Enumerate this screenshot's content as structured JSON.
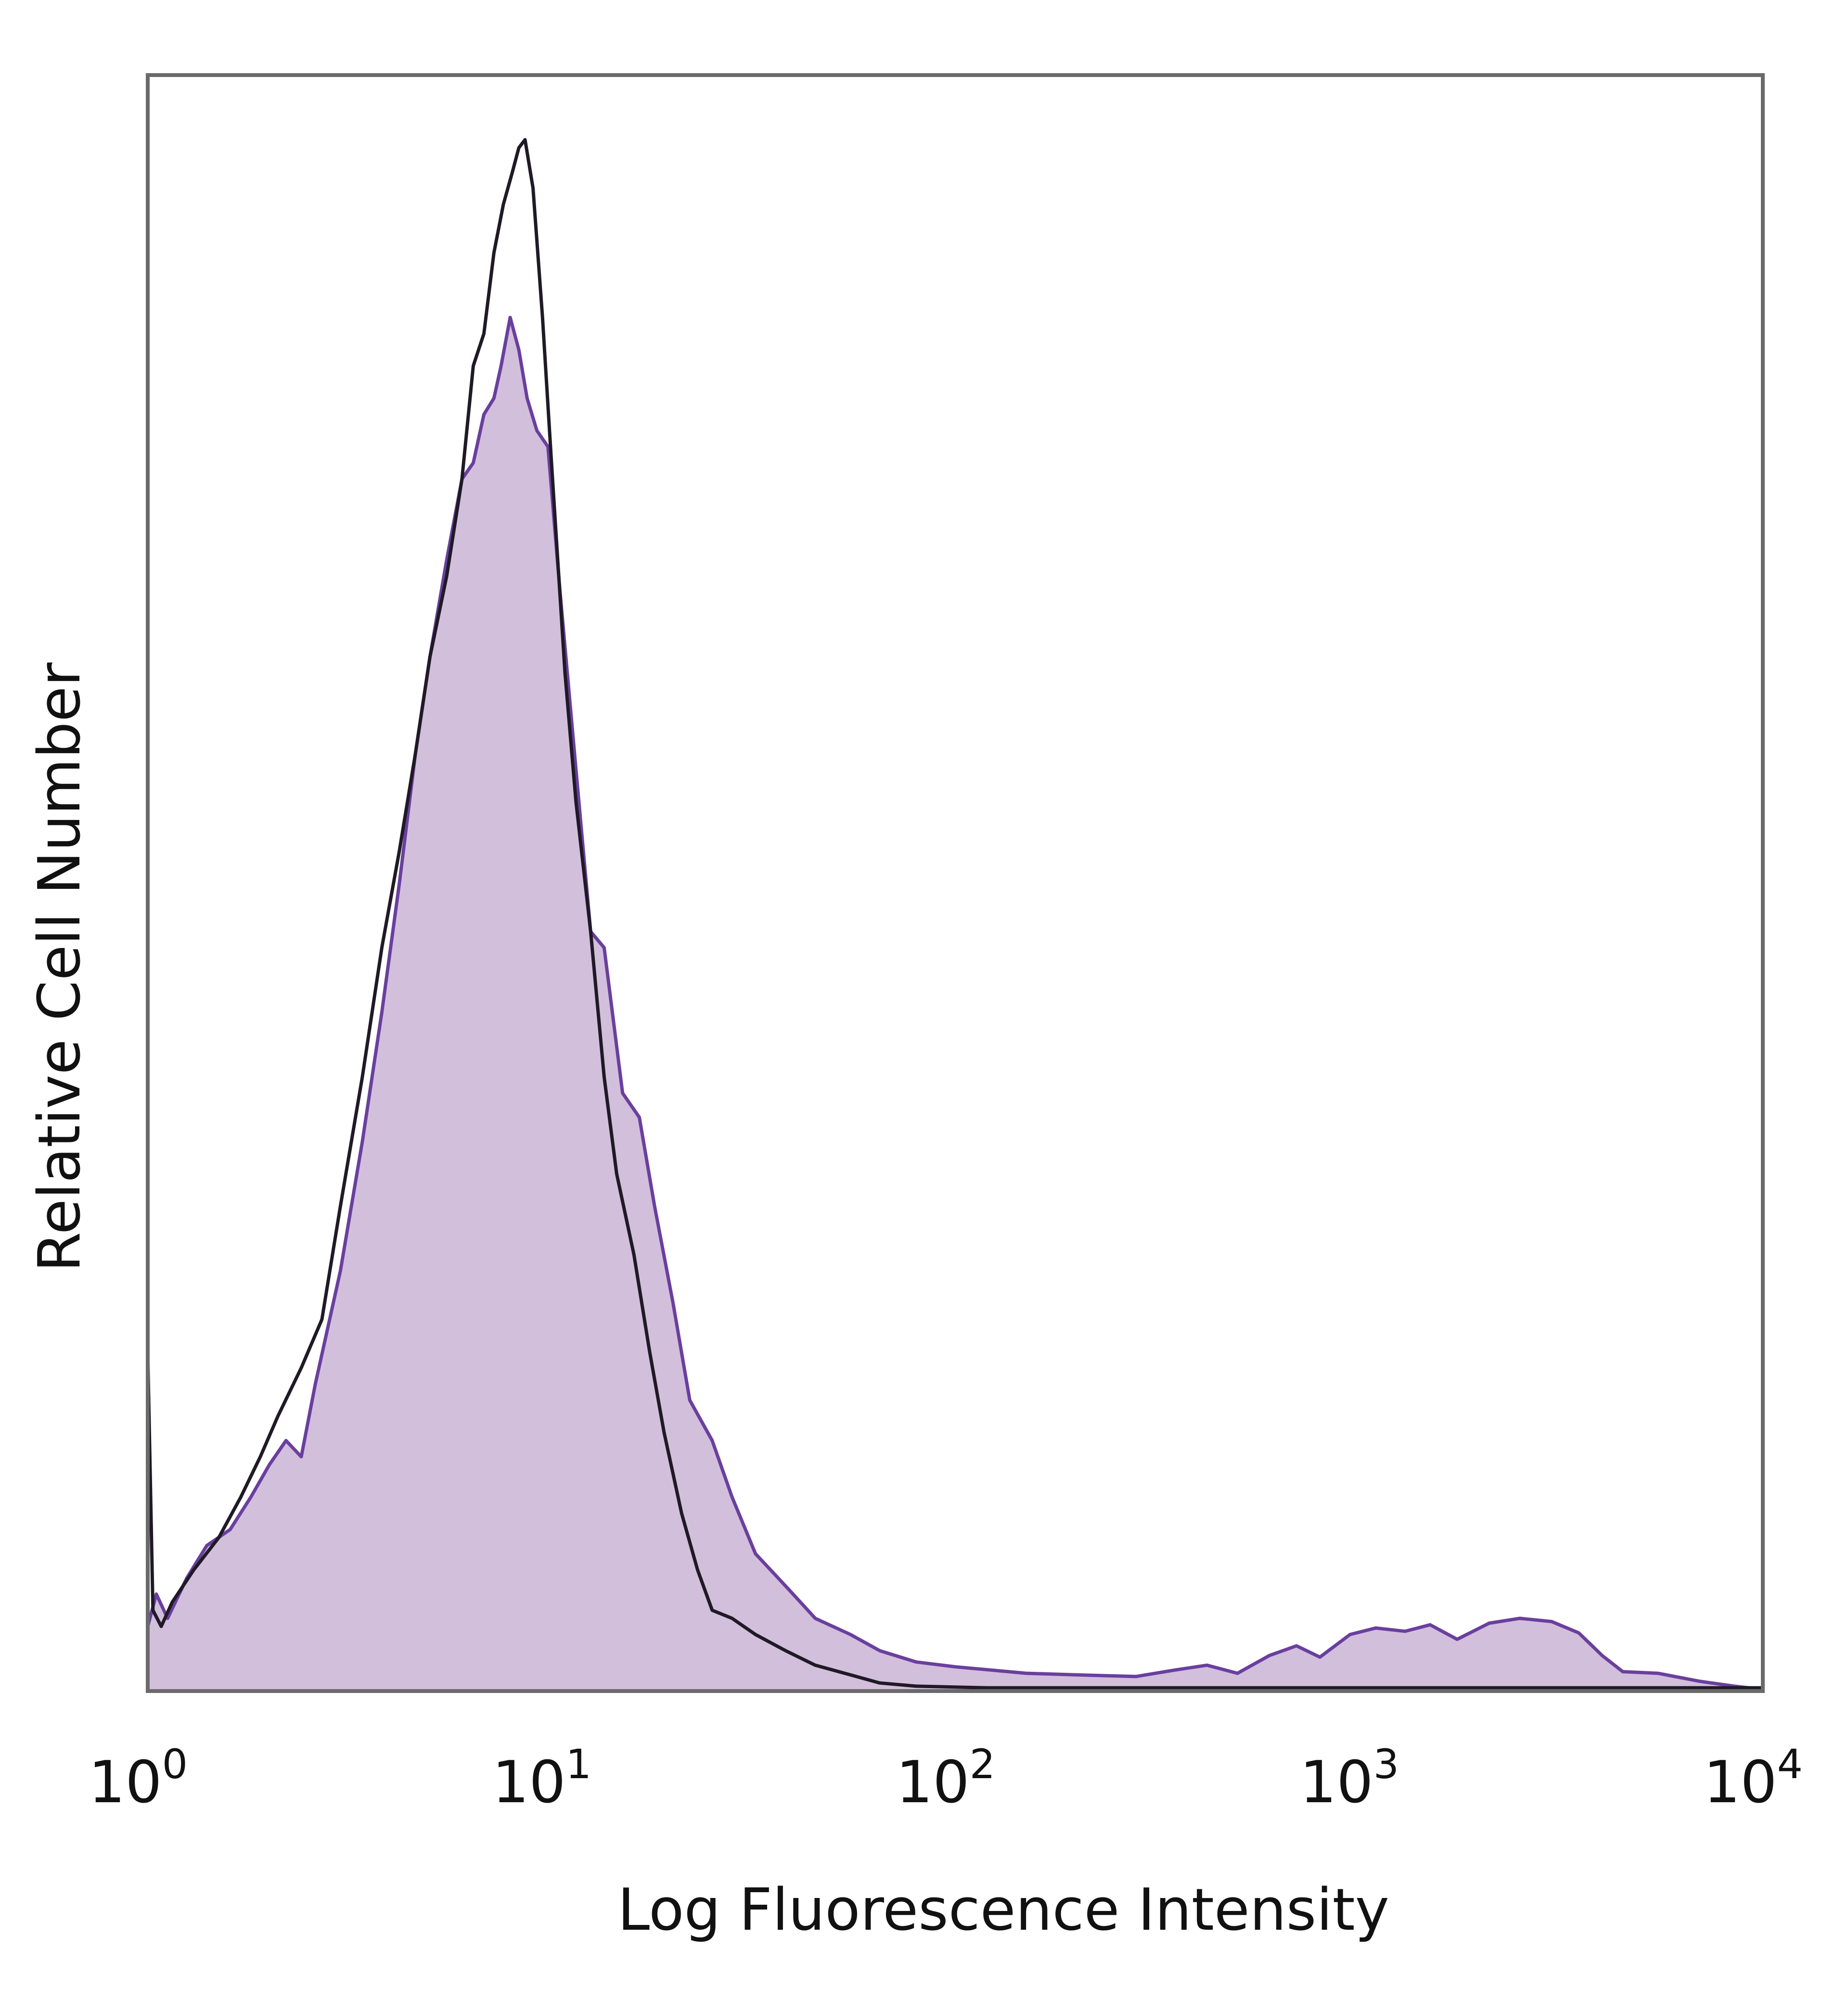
{
  "chart_data": {
    "type": "area",
    "title": "",
    "xlabel": "Log Fluorescence Intensity",
    "ylabel": "Relative Cell Number",
    "x_scale": "log",
    "xlim": [
      1,
      10000
    ],
    "ylim": [
      0,
      1
    ],
    "grid": false,
    "legend": "none",
    "x_ticks": [
      {
        "base": "10",
        "exp": "0",
        "value": 1
      },
      {
        "base": "10",
        "exp": "1",
        "value": 10
      },
      {
        "base": "10",
        "exp": "2",
        "value": 100
      },
      {
        "base": "10",
        "exp": "3",
        "value": 1000
      },
      {
        "base": "10",
        "exp": "4",
        "value": 10000
      }
    ],
    "series": [
      {
        "style": "filled",
        "fill_color": "#d2bfdc",
        "line_color": "#6a3f9e",
        "points": [
          [
            1.0,
            0.04
          ],
          [
            1.05,
            0.06
          ],
          [
            1.12,
            0.045
          ],
          [
            1.25,
            0.07
          ],
          [
            1.4,
            0.09
          ],
          [
            1.6,
            0.1
          ],
          [
            1.8,
            0.12
          ],
          [
            2.0,
            0.14
          ],
          [
            2.2,
            0.155
          ],
          [
            2.4,
            0.145
          ],
          [
            2.6,
            0.19
          ],
          [
            3.0,
            0.26
          ],
          [
            3.4,
            0.34
          ],
          [
            3.8,
            0.42
          ],
          [
            4.2,
            0.5
          ],
          [
            4.6,
            0.58
          ],
          [
            5.0,
            0.64
          ],
          [
            5.5,
            0.7
          ],
          [
            6.0,
            0.75
          ],
          [
            6.4,
            0.76
          ],
          [
            6.8,
            0.79
          ],
          [
            7.2,
            0.8
          ],
          [
            7.5,
            0.82
          ],
          [
            7.9,
            0.85
          ],
          [
            8.3,
            0.83
          ],
          [
            8.7,
            0.8
          ],
          [
            9.2,
            0.78
          ],
          [
            9.8,
            0.77
          ],
          [
            10.5,
            0.68
          ],
          [
            11.5,
            0.57
          ],
          [
            12.5,
            0.47
          ],
          [
            13.5,
            0.46
          ],
          [
            15.0,
            0.37
          ],
          [
            16.5,
            0.355
          ],
          [
            18.0,
            0.3
          ],
          [
            20.0,
            0.24
          ],
          [
            22.0,
            0.18
          ],
          [
            25.0,
            0.155
          ],
          [
            28.0,
            0.12
          ],
          [
            32.0,
            0.085
          ],
          [
            38.0,
            0.065
          ],
          [
            45.0,
            0.045
          ],
          [
            55.0,
            0.035
          ],
          [
            65.0,
            0.025
          ],
          [
            80.0,
            0.018
          ],
          [
            100.0,
            0.015
          ],
          [
            150.0,
            0.011
          ],
          [
            200.0,
            0.01
          ],
          [
            280.0,
            0.009
          ],
          [
            350.0,
            0.013
          ],
          [
            420.0,
            0.016
          ],
          [
            500.0,
            0.011
          ],
          [
            600.0,
            0.022
          ],
          [
            700.0,
            0.028
          ],
          [
            800.0,
            0.021
          ],
          [
            950.0,
            0.035
          ],
          [
            1100.0,
            0.039
          ],
          [
            1300.0,
            0.037
          ],
          [
            1500.0,
            0.041
          ],
          [
            1750.0,
            0.032
          ],
          [
            2100.0,
            0.042
          ],
          [
            2500.0,
            0.045
          ],
          [
            3000.0,
            0.043
          ],
          [
            3500.0,
            0.036
          ],
          [
            4000.0,
            0.022
          ],
          [
            4500.0,
            0.012
          ],
          [
            5500.0,
            0.011
          ],
          [
            7000.0,
            0.006
          ],
          [
            8500.0,
            0.003
          ],
          [
            10000.0,
            0.001
          ]
        ]
      },
      {
        "style": "line",
        "line_color": "#1f1a26",
        "points": [
          [
            1.0,
            0.21
          ],
          [
            1.03,
            0.05
          ],
          [
            1.08,
            0.04
          ],
          [
            1.15,
            0.055
          ],
          [
            1.3,
            0.075
          ],
          [
            1.5,
            0.095
          ],
          [
            1.7,
            0.12
          ],
          [
            1.9,
            0.145
          ],
          [
            2.1,
            0.17
          ],
          [
            2.4,
            0.2
          ],
          [
            2.7,
            0.23
          ],
          [
            3.0,
            0.3
          ],
          [
            3.4,
            0.38
          ],
          [
            3.8,
            0.46
          ],
          [
            4.2,
            0.52
          ],
          [
            4.6,
            0.58
          ],
          [
            5.0,
            0.64
          ],
          [
            5.5,
            0.69
          ],
          [
            6.0,
            0.75
          ],
          [
            6.4,
            0.82
          ],
          [
            6.8,
            0.84
          ],
          [
            7.2,
            0.89
          ],
          [
            7.6,
            0.92
          ],
          [
            8.0,
            0.94
          ],
          [
            8.3,
            0.955
          ],
          [
            8.6,
            0.96
          ],
          [
            9.0,
            0.93
          ],
          [
            9.5,
            0.85
          ],
          [
            10.0,
            0.76
          ],
          [
            10.8,
            0.63
          ],
          [
            11.5,
            0.55
          ],
          [
            12.5,
            0.47
          ],
          [
            13.5,
            0.38
          ],
          [
            14.5,
            0.32
          ],
          [
            16.0,
            0.27
          ],
          [
            17.5,
            0.21
          ],
          [
            19.0,
            0.16
          ],
          [
            21.0,
            0.11
          ],
          [
            23.0,
            0.075
          ],
          [
            25.0,
            0.05
          ],
          [
            28.0,
            0.045
          ],
          [
            32.0,
            0.035
          ],
          [
            38.0,
            0.025
          ],
          [
            45.0,
            0.016
          ],
          [
            55.0,
            0.01
          ],
          [
            65.0,
            0.005
          ],
          [
            80.0,
            0.003
          ],
          [
            120.0,
            0.002
          ],
          [
            400.0,
            0.002
          ],
          [
            10000.0,
            0.002
          ]
        ]
      }
    ]
  }
}
